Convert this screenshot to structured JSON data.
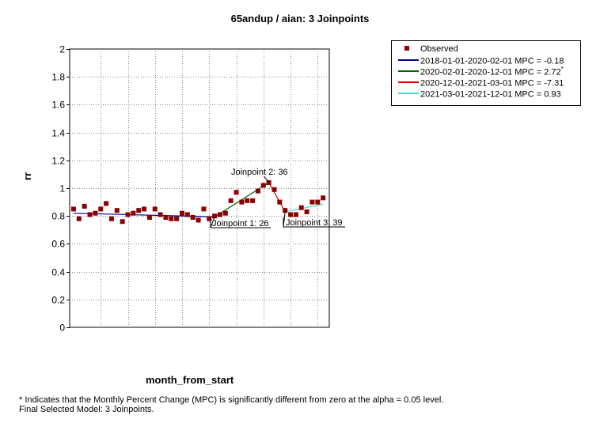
{
  "chart_data": {
    "type": "scatter",
    "title": "65andup / aian: 3 Joinpoints",
    "xlabel": "month_from_start",
    "ylabel": "rr",
    "xlim": [
      0,
      47
    ],
    "ylim": [
      0,
      2
    ],
    "yticks": [
      "0",
      "0.2",
      "0.4",
      "0.6",
      "0.8",
      "1",
      "1.2",
      "1.4",
      "1.6",
      "1.8",
      "2"
    ],
    "grid": true,
    "legend_position": "top-right",
    "observed": {
      "name": "Observed",
      "color": "#8b0000",
      "x": [
        0,
        1,
        2,
        3,
        4,
        5,
        6,
        7,
        8,
        9,
        10,
        11,
        12,
        13,
        14,
        15,
        16,
        17,
        18,
        19,
        20,
        21,
        22,
        23,
        24,
        25,
        26,
        27,
        28,
        29,
        30,
        31,
        32,
        33,
        34,
        35,
        36,
        37,
        38,
        39,
        40,
        41,
        42,
        43,
        44,
        45,
        46
      ],
      "y": [
        0.85,
        0.78,
        0.87,
        0.81,
        0.82,
        0.85,
        0.89,
        0.78,
        0.84,
        0.76,
        0.81,
        0.82,
        0.84,
        0.85,
        0.79,
        0.85,
        0.81,
        0.79,
        0.78,
        0.78,
        0.82,
        0.81,
        0.79,
        0.77,
        0.85,
        0.78,
        0.8,
        0.81,
        0.82,
        0.91,
        0.97,
        0.9,
        0.91,
        0.91,
        0.98,
        1.02,
        1.04,
        0.99,
        0.9,
        0.84,
        0.81,
        0.81,
        0.86,
        0.83,
        0.9,
        0.9,
        0.93
      ]
    },
    "series": [
      {
        "name": "2018-01-01-2020-02-01 MPC  = -0.18",
        "color": "#00008b",
        "x": [
          0,
          26
        ],
        "y": [
          0.82,
          0.794
        ]
      },
      {
        "name": "2020-02-01-2020-12-01 MPC  = 2.72",
        "marker": "*",
        "color": "#006400",
        "x": [
          26,
          36
        ],
        "y": [
          0.794,
          1.04
        ]
      },
      {
        "name": "2020-12-01-2021-03-01 MPC  = -7.31",
        "color": "#dd0000",
        "x": [
          36,
          39
        ],
        "y": [
          1.04,
          0.83
        ]
      },
      {
        "name": "2021-03-01-2021-12-01 MPC  = 0.93",
        "color": "#40e0d0",
        "x": [
          39,
          46
        ],
        "y": [
          0.83,
          0.885
        ]
      }
    ],
    "annotations": [
      {
        "text": "Joinpoint 1:  26",
        "x": 26,
        "y": 0.794
      },
      {
        "text": "Joinpoint 2:  36",
        "x": 36,
        "y": 1.04
      },
      {
        "text": "Joinpoint 3:  39",
        "x": 39,
        "y": 0.83
      }
    ]
  },
  "legend": {
    "observed_label": "Observed",
    "items": [
      {
        "label": "2018-01-01-2020-02-01 MPC  = -0.18",
        "star": ""
      },
      {
        "label": "2020-02-01-2020-12-01 MPC  = 2.72",
        "star": "*"
      },
      {
        "label": "2020-12-01-2021-03-01 MPC  = -7.31",
        "star": ""
      },
      {
        "label": "2021-03-01-2021-12-01 MPC  = 0.93",
        "star": ""
      }
    ]
  },
  "footnote": {
    "line1": "* Indicates that the Monthly Percent Change (MPC) is significantly different from zero at the alpha = 0.05 level.",
    "line2": "Final Selected Model: 3 Joinpoints."
  }
}
